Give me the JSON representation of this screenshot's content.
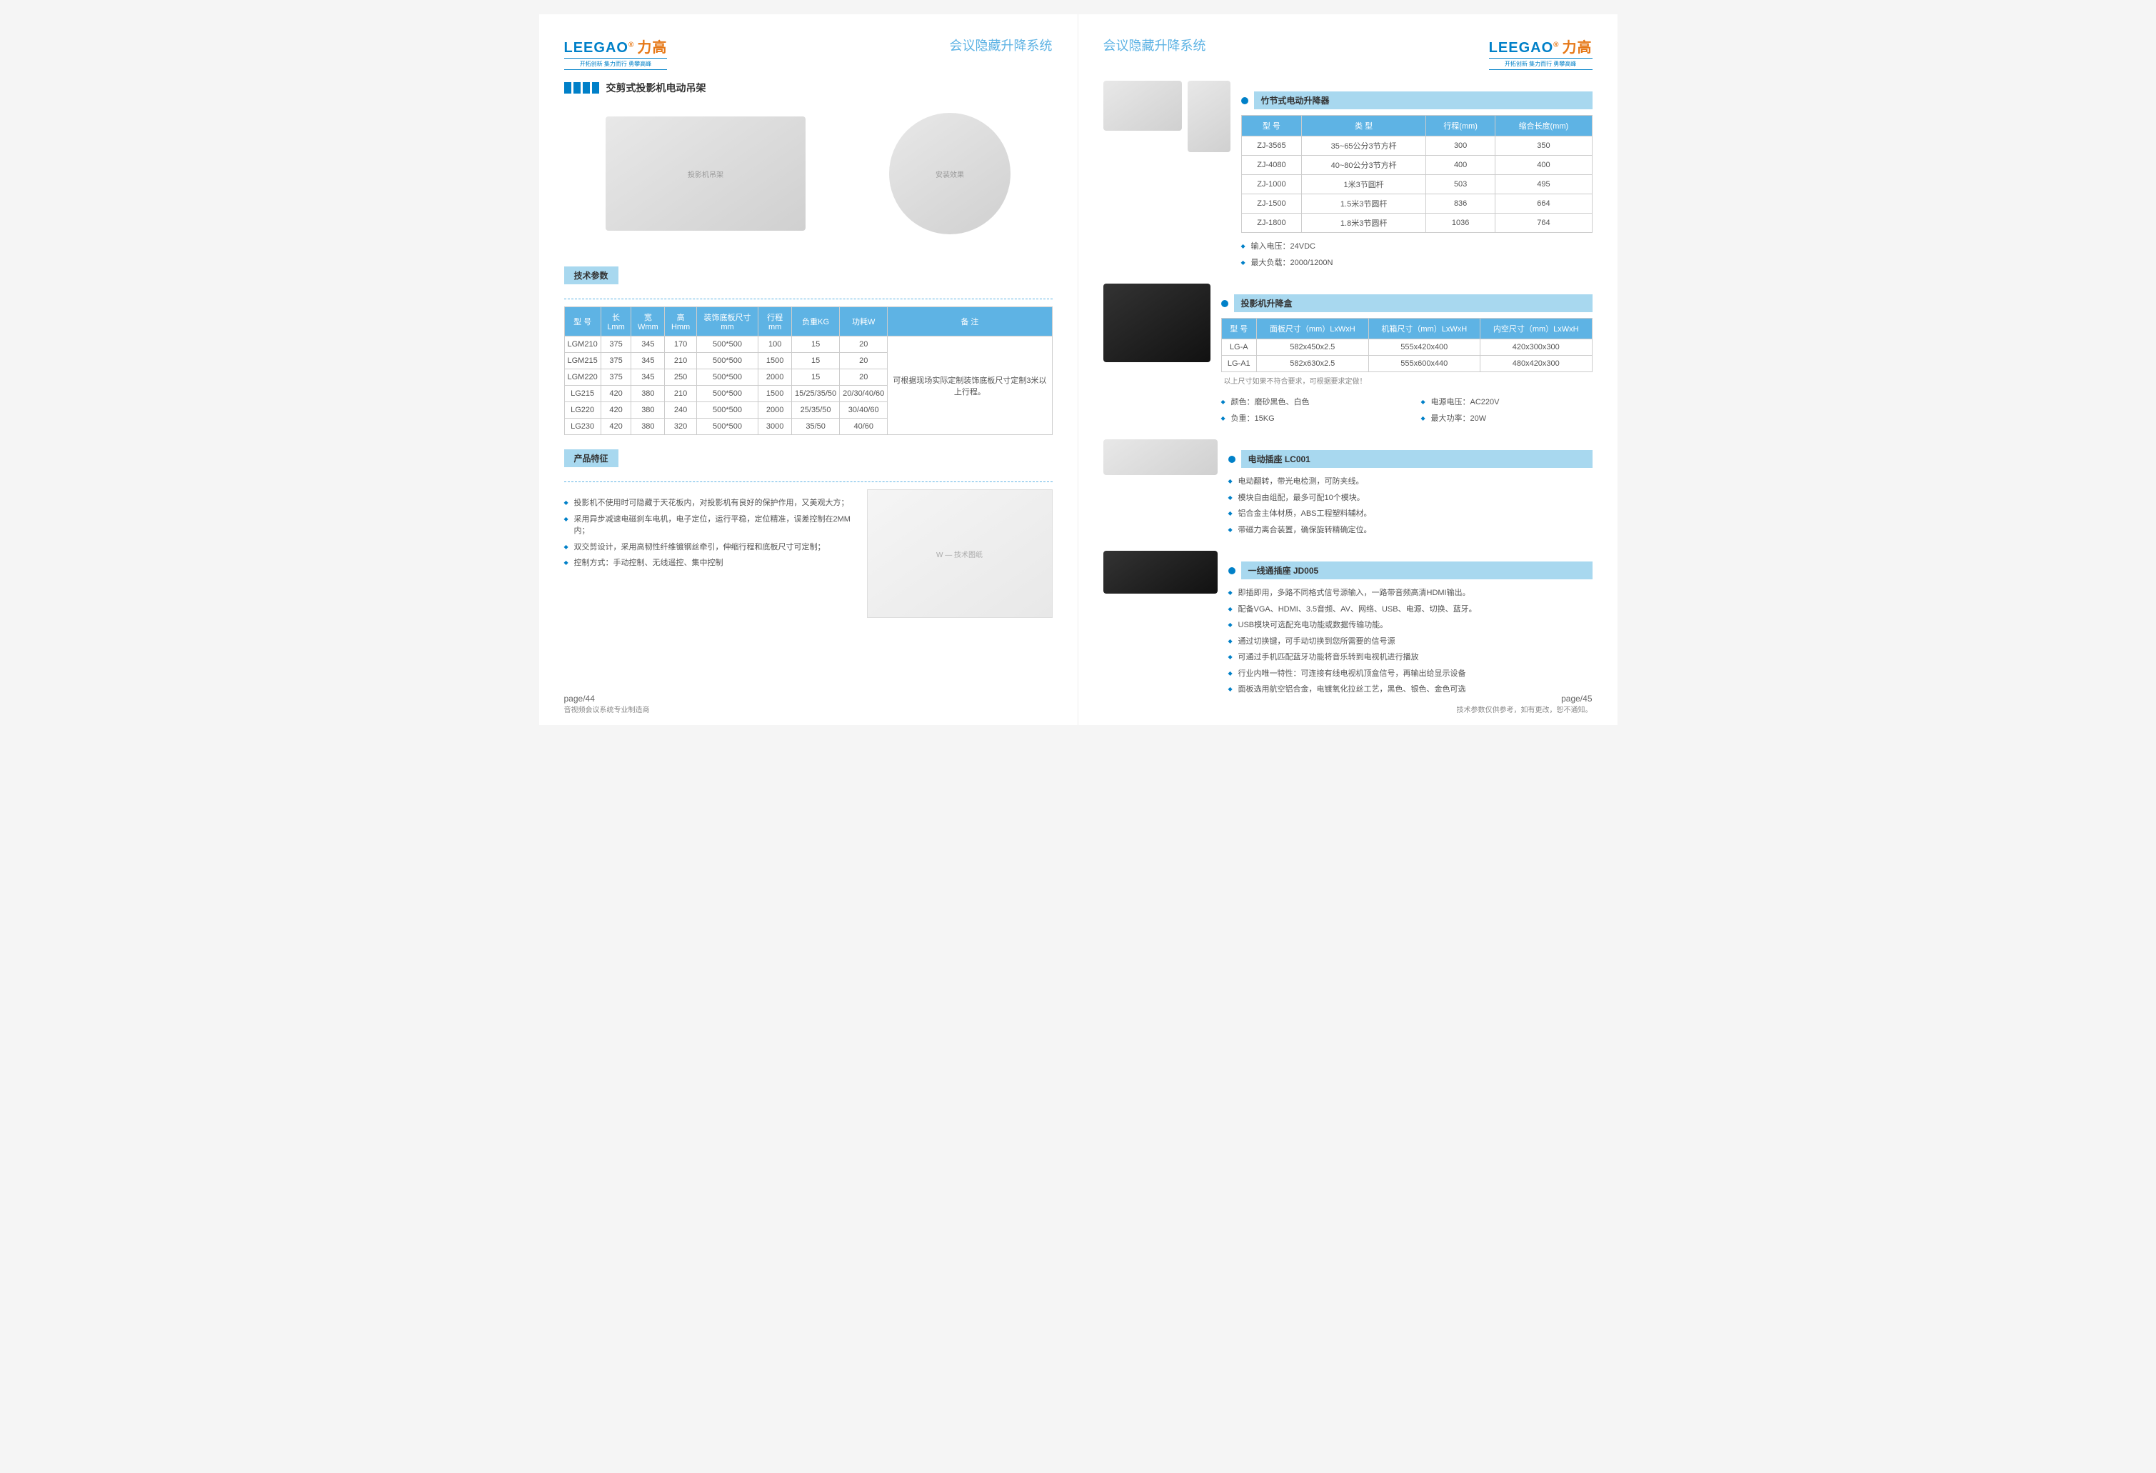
{
  "brand": {
    "en": "LEEGAO",
    "cn": "力高",
    "slogan": "开拓创新 集力而行 勇攀高峰"
  },
  "category": "会议隐藏升降系统",
  "left": {
    "title": "交剪式投影机电动吊架",
    "tech_params_label": "技术参数",
    "table1": {
      "headers": [
        "型 号",
        "长Lmm",
        "宽Wmm",
        "高Hmm",
        "装饰底板尺寸mm",
        "行程mm",
        "负重KG",
        "功耗W",
        "备  注"
      ],
      "rows": [
        [
          "LGM210",
          "375",
          "345",
          "170",
          "500*500",
          "100",
          "15",
          "20"
        ],
        [
          "LGM215",
          "375",
          "345",
          "210",
          "500*500",
          "1500",
          "15",
          "20"
        ],
        [
          "LGM220",
          "375",
          "345",
          "250",
          "500*500",
          "2000",
          "15",
          "20"
        ],
        [
          "LG215",
          "420",
          "380",
          "210",
          "500*500",
          "1500",
          "15/25/35/50",
          "20/30/40/60"
        ],
        [
          "LG220",
          "420",
          "380",
          "240",
          "500*500",
          "2000",
          "25/35/50",
          "30/40/60"
        ],
        [
          "LG230",
          "420",
          "380",
          "320",
          "500*500",
          "3000",
          "35/50",
          "40/60"
        ]
      ],
      "note": "可根据现场实际定制装饰底板尺寸定制3米以上行程。"
    },
    "features_label": "产品特征",
    "features": [
      "投影机不使用时可隐藏于天花板内，对投影机有良好的保护作用，又美观大方；",
      "采用异步减速电磁刹车电机，电子定位，运行平稳，定位精准，误差控制在2MM内；",
      "双交剪设计，采用高韧性纤维镀钢丝牵引，伸缩行程和底板尺寸可定制；",
      "控制方式：手动控制、无线遥控、集中控制"
    ],
    "page_num": "page/44",
    "footer": "音视频会议系统专业制造商"
  },
  "right": {
    "sec1": {
      "title": "竹节式电动升降器",
      "table": {
        "headers": [
          "型 号",
          "类  型",
          "行程(mm)",
          "缩合长度(mm)"
        ],
        "rows": [
          [
            "ZJ-3565",
            "35~65公分3节方杆",
            "300",
            "350"
          ],
          [
            "ZJ-4080",
            "40~80公分3节方杆",
            "400",
            "400"
          ],
          [
            "ZJ-1000",
            "1米3节圆杆",
            "503",
            "495"
          ],
          [
            "ZJ-1500",
            "1.5米3节圆杆",
            "836",
            "664"
          ],
          [
            "ZJ-1800",
            "1.8米3节圆杆",
            "1036",
            "764"
          ]
        ]
      },
      "specs": [
        "输入电压：24VDC",
        "最大负载：2000/1200N"
      ]
    },
    "sec2": {
      "title": "投影机升降盒",
      "table": {
        "headers": [
          "型 号",
          "面板尺寸（mm）LxWxH",
          "机箱尺寸（mm）LxWxH",
          "内空尺寸（mm）LxWxH"
        ],
        "rows": [
          [
            "LG-A",
            "582x450x2.5",
            "555x420x400",
            "420x300x300"
          ],
          [
            "LG-A1",
            "582x630x2.5",
            "555x600x440",
            "480x420x300"
          ]
        ],
        "footnote": "以上尺寸如果不符合要求，可根据要求定做！"
      },
      "specs_l": [
        "颜色：磨砂黑色、白色",
        "负重：15KG"
      ],
      "specs_r": [
        "电源电压：AC220V",
        "最大功率：20W"
      ]
    },
    "sec3": {
      "title": "电动插座  LC001",
      "specs": [
        "电动翻转，带光电检测，可防夹线。",
        "模块自由组配，最多可配10个模块。",
        "铝合金主体材质，ABS工程塑料辅材。",
        "带磁力离合装置，确保旋转精确定位。"
      ]
    },
    "sec4": {
      "title": "一线通插座  JD005",
      "specs": [
        "即插即用，多路不同格式信号源输入，一路带音频高清HDMI输出。",
        "配备VGA、HDMI、3.5音频、AV、网络、USB、电源、切换、蓝牙。",
        "USB模块可选配充电功能或数据传输功能。",
        "通过切换键，可手动切换到您所需要的信号源",
        "可通过手机匹配蓝牙功能将音乐转到电视机进行播放",
        "行业内唯一特性：可连接有线电视机顶盒信号，再输出给显示设备",
        "面板选用航空铝合金，电镀氧化拉丝工艺，黑色、银色、金色可选"
      ]
    },
    "page_num": "page/45",
    "footer": "技术参数仅供参考，如有更改，恕不通知。"
  }
}
